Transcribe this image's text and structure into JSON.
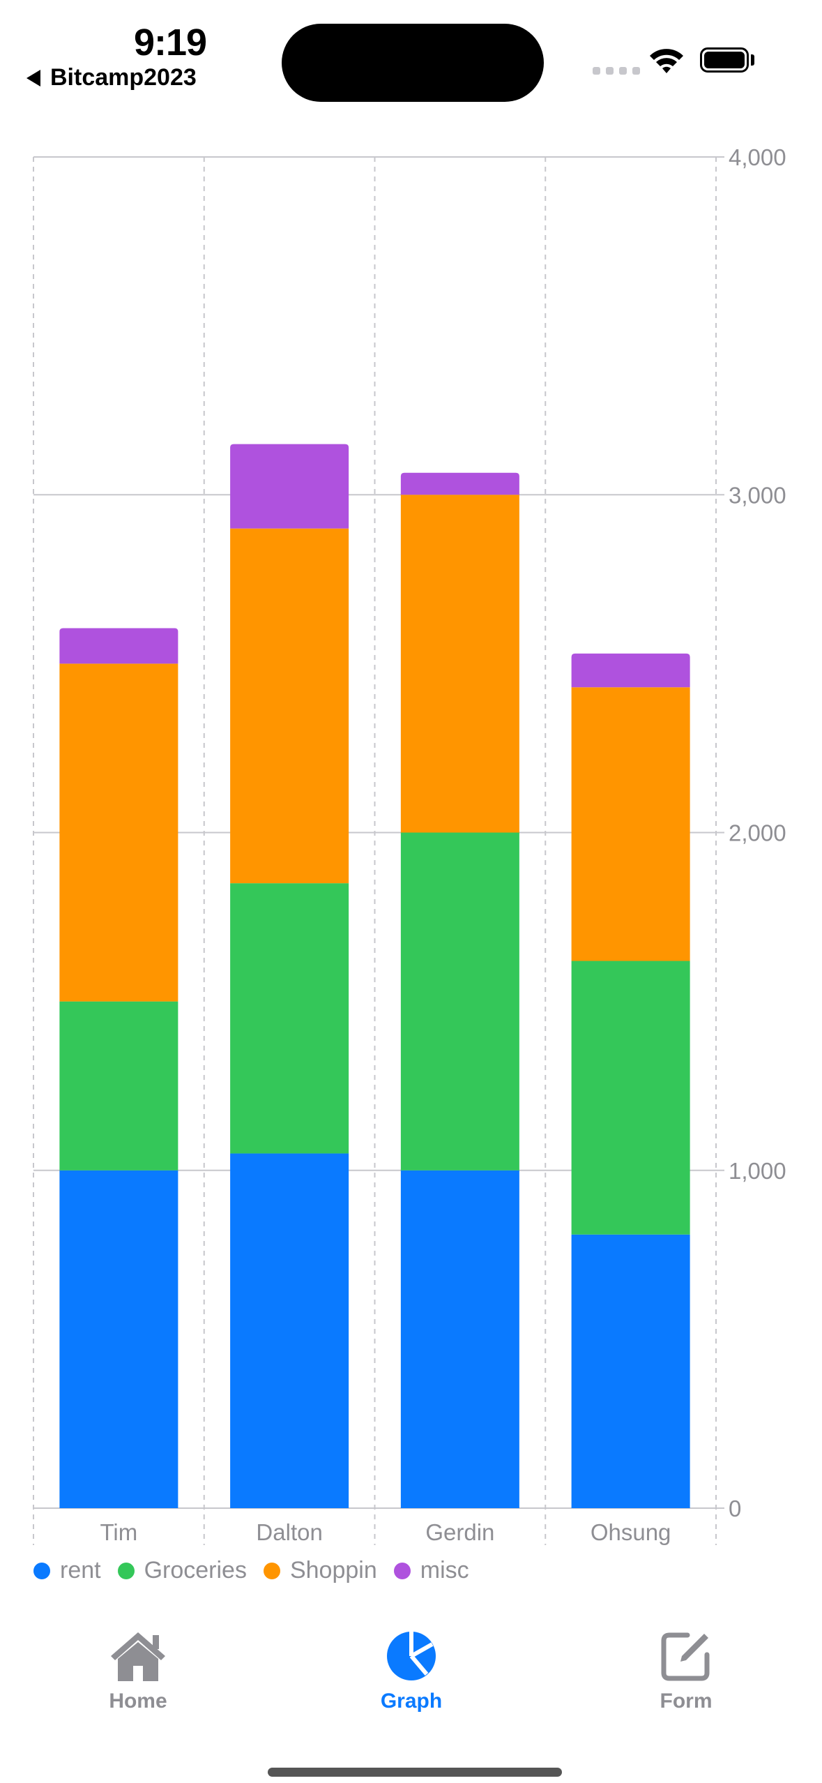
{
  "status_bar": {
    "time": "9:19",
    "back_label": "Bitcamp2023"
  },
  "colors": {
    "rent": "#0a7aff",
    "Groceries": "#34c759",
    "Shoppin": "#ff9500",
    "misc": "#af52de",
    "tab_active": "#0a7aff",
    "tab_inactive": "#8e8e93"
  },
  "chart_data": {
    "type": "bar",
    "stacked": true,
    "categories": [
      "Tim",
      "Dalton",
      "Gerdin",
      "Ohsung"
    ],
    "series": [
      {
        "name": "rent",
        "values": [
          1000,
          1050,
          1000,
          810
        ]
      },
      {
        "name": "Groceries",
        "values": [
          500,
          800,
          1000,
          810
        ]
      },
      {
        "name": "Shoppin",
        "values": [
          1000,
          1050,
          1000,
          810
        ]
      },
      {
        "name": "misc",
        "values": [
          105,
          250,
          65,
          100
        ]
      }
    ],
    "yticks": [
      0,
      1000,
      2000,
      3000,
      4000
    ],
    "ytick_labels": [
      "0",
      "1,000",
      "2,000",
      "3,000",
      "4,000"
    ],
    "ylim": [
      0,
      4000
    ],
    "y_axis_side": "right",
    "grid": true,
    "legend_position": "bottom-left",
    "xlabel": "",
    "ylabel": ""
  },
  "tabs": [
    {
      "label": "Home",
      "icon": "house-icon",
      "active": false
    },
    {
      "label": "Graph",
      "icon": "chart-pie-icon",
      "active": true
    },
    {
      "label": "Form",
      "icon": "square-pencil-icon",
      "active": false
    }
  ]
}
